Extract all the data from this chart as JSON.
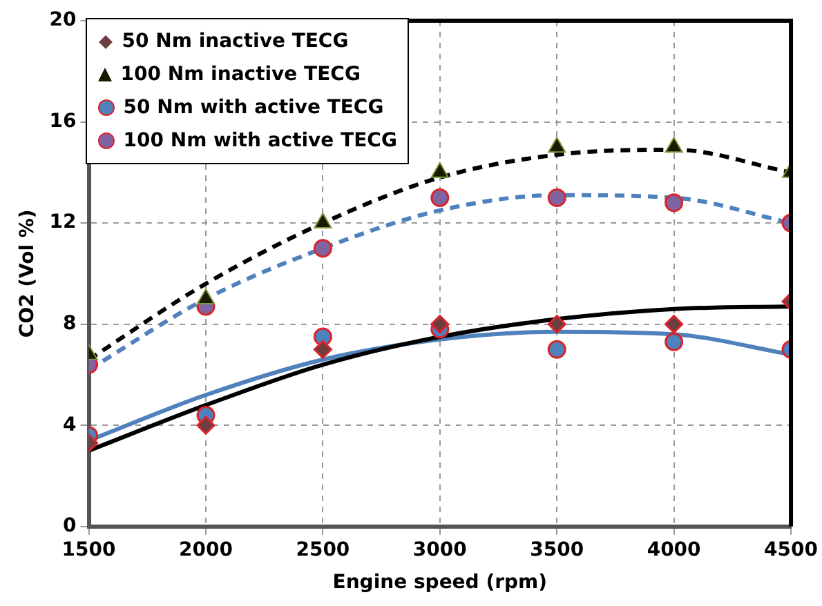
{
  "chart_data": {
    "type": "scatter",
    "xlabel": "Engine speed (rpm)",
    "ylabel": "CO2 (Vol %)",
    "x": [
      1500,
      2000,
      2500,
      3000,
      3500,
      4000,
      4500
    ],
    "xlim": [
      1500,
      4500
    ],
    "xticks": [
      1500,
      2000,
      2500,
      3000,
      3500,
      4000,
      4500
    ],
    "ylim": [
      0,
      20
    ],
    "yticks": [
      0,
      4,
      8,
      12,
      16,
      20
    ],
    "grid": true,
    "legend": "top left",
    "series": [
      {
        "name": "50 Nm inactive TECG",
        "color": "#6b3f3f",
        "marker": "diamond",
        "values": [
          3.3,
          4.0,
          7.0,
          8.0,
          8.0,
          8.0,
          8.9
        ]
      },
      {
        "name": "100 Nm inactive TECG",
        "color": "#1a1a00",
        "marker": "triangle",
        "values": [
          6.8,
          9.0,
          12.0,
          14.0,
          15.0,
          15.0,
          14.0
        ]
      },
      {
        "name": "50 Nm with active TECG",
        "color": "#4f81bd",
        "marker": "circle",
        "values": [
          3.6,
          4.4,
          7.5,
          7.8,
          7.0,
          7.3,
          7.0
        ]
      },
      {
        "name": "100 Nm with active TECG",
        "color": "#8064a2",
        "marker": "circle",
        "values": [
          6.4,
          8.7,
          11.0,
          13.0,
          13.0,
          12.8,
          12.0
        ]
      },
      {
        "type": "line",
        "color": "#000000",
        "line_style": "dashed",
        "marker": "none",
        "x": [
          1500,
          2000,
          2500,
          3000,
          3500,
          4000,
          4500
        ],
        "values": [
          6.6,
          9.6,
          12.0,
          13.8,
          14.7,
          14.9,
          14.0
        ]
      },
      {
        "type": "line",
        "color": "#4f81bd",
        "line_style": "dashed",
        "marker": "none",
        "x": [
          1500,
          2000,
          2500,
          3000,
          3500,
          4000,
          4500
        ],
        "values": [
          6.2,
          9.0,
          11.0,
          12.5,
          13.1,
          13.0,
          12.0
        ]
      },
      {
        "type": "line",
        "color": "#000000",
        "line_style": "solid",
        "marker": "none",
        "x": [
          1500,
          2000,
          2500,
          3000,
          3500,
          4000,
          4500
        ],
        "values": [
          3.0,
          4.8,
          6.4,
          7.5,
          8.2,
          8.6,
          8.7
        ]
      },
      {
        "type": "line",
        "color": "#4f81bd",
        "line_style": "solid",
        "marker": "none",
        "x": [
          1500,
          2000,
          2500,
          3000,
          3500,
          4000,
          4500
        ],
        "values": [
          3.4,
          5.2,
          6.6,
          7.4,
          7.7,
          7.6,
          6.8
        ]
      }
    ]
  }
}
